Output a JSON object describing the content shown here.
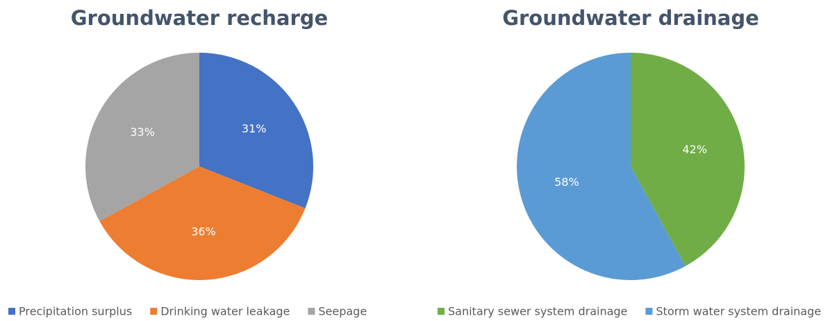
{
  "chart_data": [
    {
      "type": "pie",
      "title": "Groundwater recharge",
      "categories": [
        "Precipitation surplus",
        "Drinking water leakage",
        "Seepage"
      ],
      "values": [
        31,
        36,
        33
      ],
      "value_labels": [
        "31%",
        "36%",
        "33%"
      ],
      "colors": [
        "#4472c4",
        "#ed7d31",
        "#a5a5a5"
      ],
      "legend": "bottom"
    },
    {
      "type": "pie",
      "title": "Groundwater drainage",
      "categories": [
        "Sanitary sewer system drainage",
        "Storm water system drainage"
      ],
      "values": [
        42,
        58
      ],
      "value_labels": [
        "42%",
        "58%"
      ],
      "colors": [
        "#70ad47",
        "#5b9bd5"
      ],
      "legend": "bottom"
    }
  ]
}
